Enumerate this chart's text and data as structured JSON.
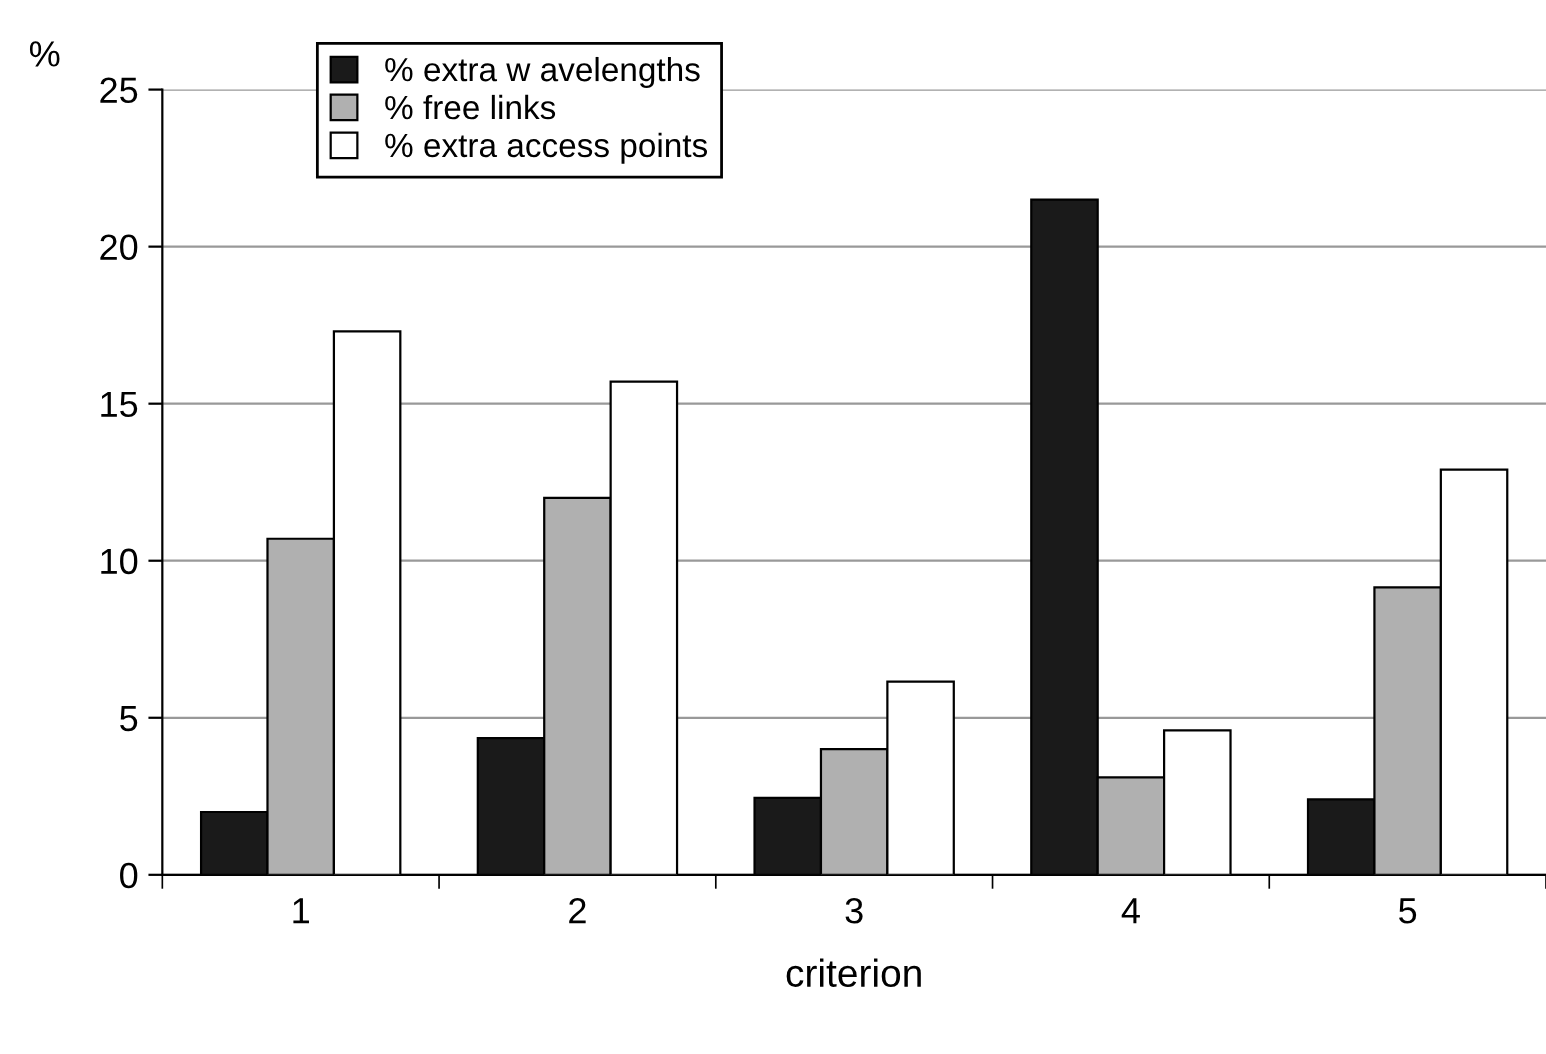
{
  "chart_data": {
    "type": "bar",
    "xlabel": "criterion",
    "ylabel": "%",
    "categories": [
      "1",
      "2",
      "3",
      "4",
      "5"
    ],
    "series": [
      {
        "name": "% extra w avelengths",
        "color": "#1a1a1a",
        "values": [
          2.0,
          4.35,
          2.45,
          21.5,
          2.4
        ]
      },
      {
        "name": "% free links",
        "color": "#b0b0b0",
        "values": [
          10.7,
          12.0,
          4.0,
          3.1,
          9.15
        ]
      },
      {
        "name": "% extra access points",
        "color": "#ffffff",
        "values": [
          17.3,
          15.7,
          6.15,
          4.6,
          12.9
        ]
      }
    ],
    "ylim": [
      0,
      25
    ],
    "yticks": [
      0,
      5,
      10,
      15,
      20,
      25
    ],
    "grid": "y",
    "legend": "top left"
  }
}
